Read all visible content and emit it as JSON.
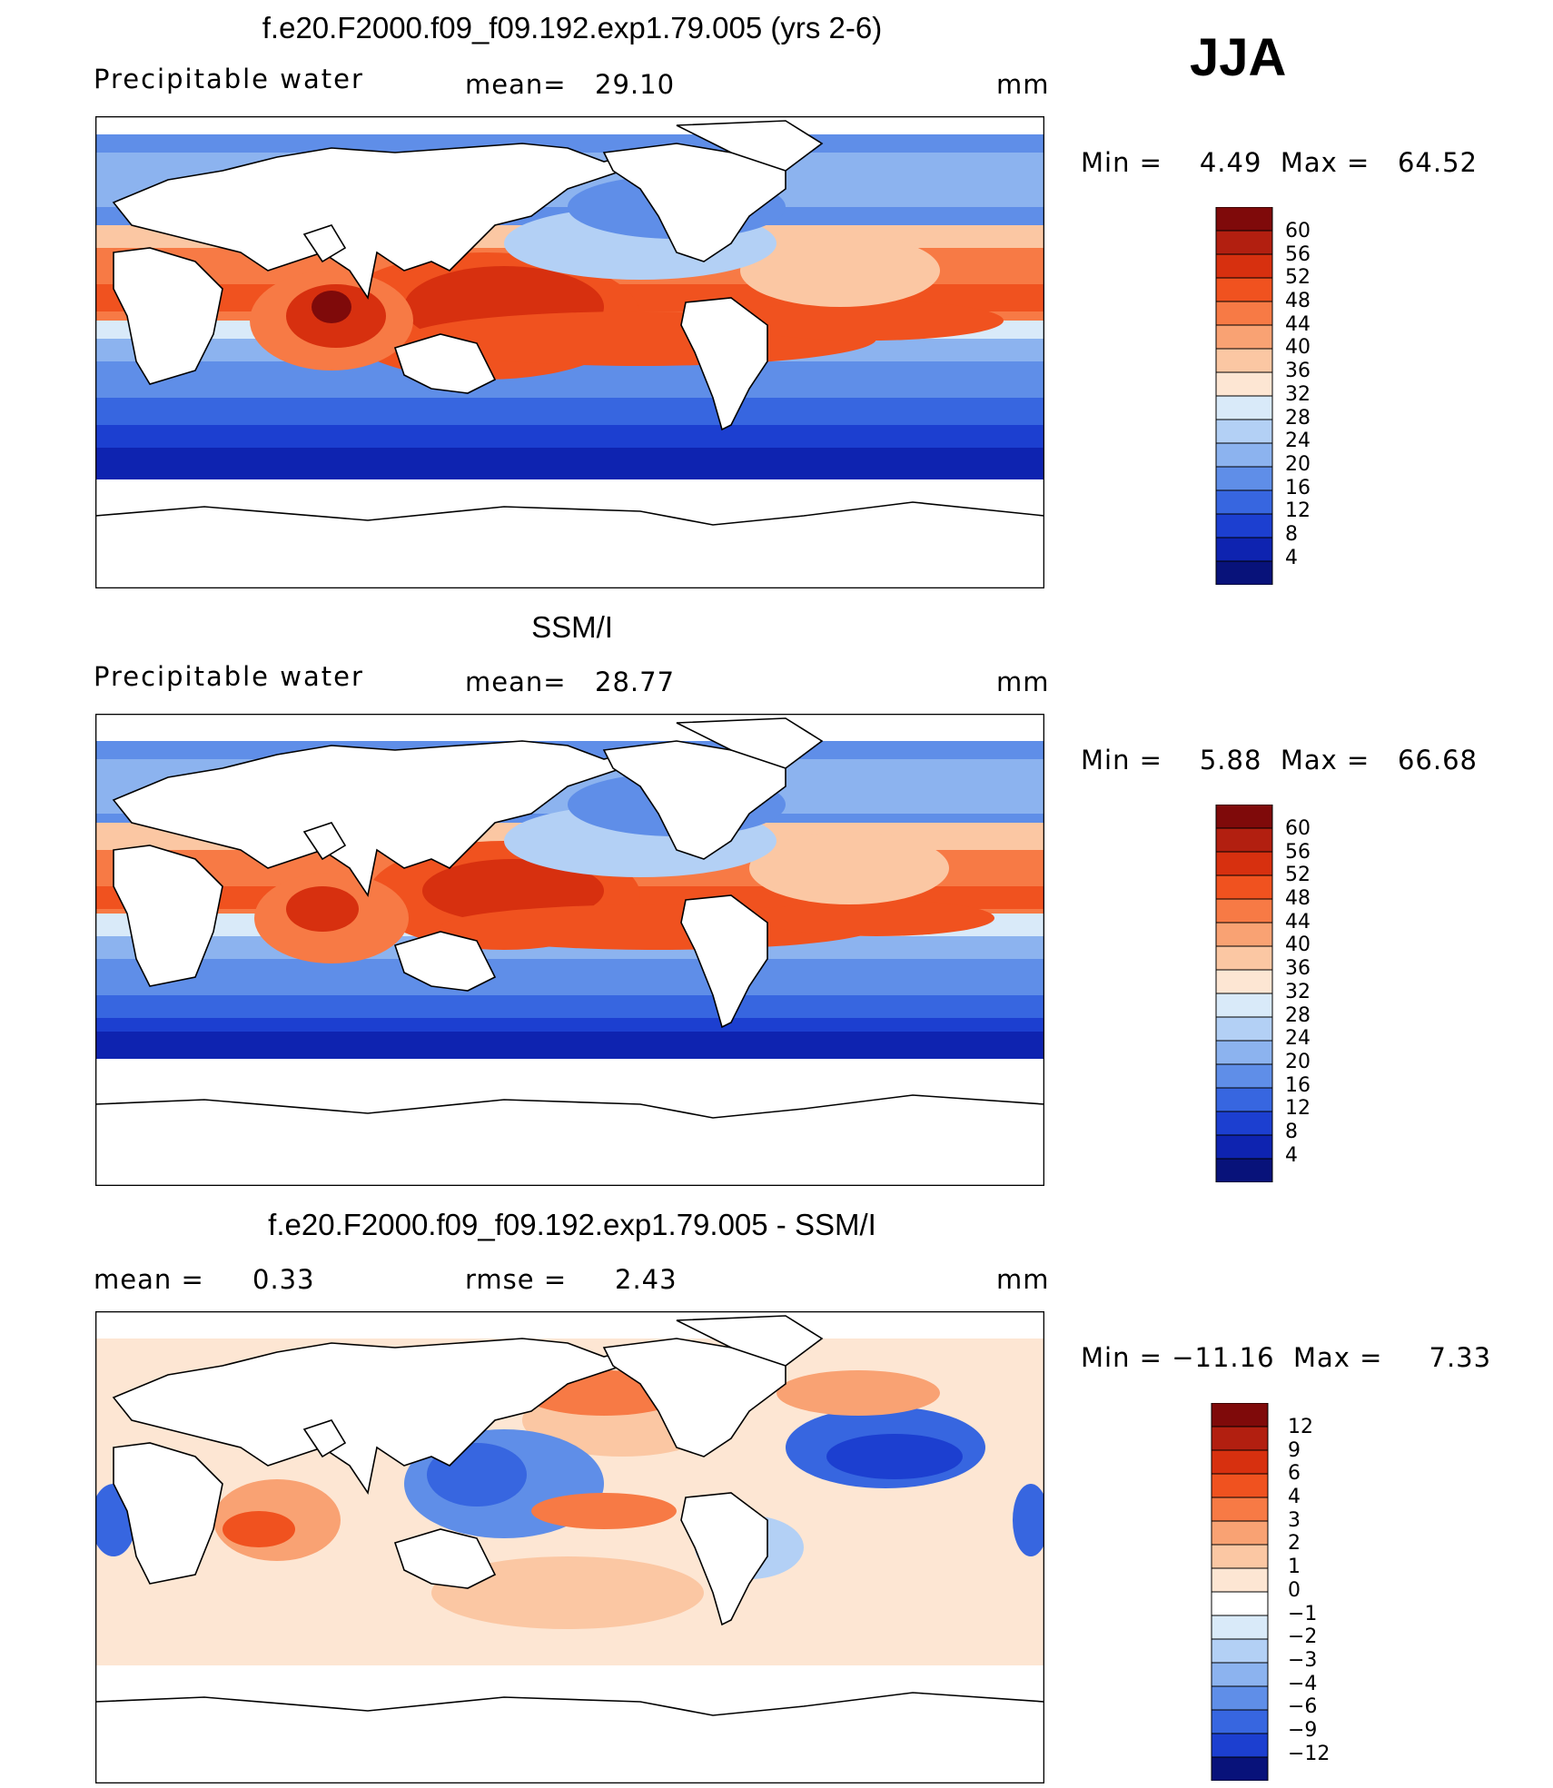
{
  "season": "JJA",
  "panels": [
    {
      "title": "f.e20.F2000.f09_f09.192.exp1.79.005 (yrs 2-6)",
      "field": "Precipitable water",
      "stat1_label": "mean=",
      "stat1_value": "29.10",
      "units": "mm",
      "range_text": "Min =    4.49  Max =   64.52",
      "colorbar_labels": [
        "60",
        "56",
        "52",
        "48",
        "44",
        "40",
        "36",
        "32",
        "28",
        "24",
        "20",
        "16",
        "12",
        "8",
        "4"
      ]
    },
    {
      "title": "SSM/I",
      "field": "Precipitable water",
      "stat1_label": "mean=",
      "stat1_value": "28.77",
      "units": "mm",
      "range_text": "Min =    5.88  Max =   66.68",
      "colorbar_labels": [
        "60",
        "56",
        "52",
        "48",
        "44",
        "40",
        "36",
        "32",
        "28",
        "24",
        "20",
        "16",
        "12",
        "8",
        "4"
      ]
    },
    {
      "title": "f.e20.F2000.f09_f09.192.exp1.79.005 - SSM/I",
      "stat1_label": "mean =",
      "stat1_value": "0.33",
      "stat2_label": "rmse =",
      "stat2_value": "2.43",
      "units": "mm",
      "range_text": "Min = −11.16  Max =     7.33",
      "colorbar_labels": [
        "12",
        "9",
        "6",
        "4",
        "3",
        "2",
        "1",
        "0",
        "−1",
        "−2",
        "−3",
        "−4",
        "−6",
        "−9",
        "−12"
      ]
    }
  ],
  "colors": {
    "abs_scale": [
      "#7f0a0a",
      "#b21f10",
      "#d7300f",
      "#f0521f",
      "#f77a45",
      "#f9a273",
      "#fbc7a3",
      "#fde6d3",
      "#d9eaf9",
      "#b3d0f5",
      "#8cb3ef",
      "#5f8ee8",
      "#3766e0",
      "#1c3fd0",
      "#0e23b0",
      "#08127a"
    ],
    "diff_scale": [
      "#7f0a0a",
      "#b21f10",
      "#d7300f",
      "#f0521f",
      "#f77a45",
      "#f9a273",
      "#fbc7a3",
      "#fde6d3",
      "#ffffff",
      "#d9eaf9",
      "#b3d0f5",
      "#8cb3ef",
      "#5f8ee8",
      "#3766e0",
      "#1c3fd0",
      "#08127a"
    ]
  }
}
